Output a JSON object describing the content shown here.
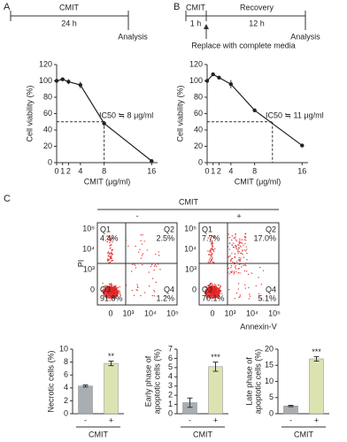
{
  "panels": {
    "A": {
      "label": "A",
      "timeline": {
        "treatment": "CMIT",
        "duration": "24 h",
        "end": "Analysis"
      }
    },
    "B": {
      "label": "B",
      "timeline": {
        "treatment": "CMIT",
        "duration": "1 h",
        "recovery": "Recovery",
        "recovery_duration": "12 h",
        "end": "Analysis",
        "note": "Replace with complete media"
      }
    },
    "C": {
      "label": "C",
      "title": "CMIT",
      "x_label": "Annexin-V",
      "y_label": "PI",
      "x_ticks": [
        "0",
        "10³",
        "10⁴",
        "10⁵"
      ],
      "y_ticks": [
        "10⁵",
        "10⁴",
        "10³",
        "0"
      ],
      "plots": [
        {
          "condition": "-",
          "quadrants": [
            {
              "name": "Q1",
              "value": "4.4%"
            },
            {
              "name": "Q2",
              "value": "2.5%"
            },
            {
              "name": "Q3",
              "value": "91.8%"
            },
            {
              "name": "Q4",
              "value": "1.2%"
            }
          ]
        },
        {
          "condition": "+",
          "quadrants": [
            {
              "name": "Q1",
              "value": "7.7%"
            },
            {
              "name": "Q2",
              "value": "17.0%"
            },
            {
              "name": "Q3",
              "value": "70.1%"
            },
            {
              "name": "Q4",
              "value": "5.1%"
            }
          ]
        }
      ]
    }
  },
  "chart_data": [
    {
      "type": "line",
      "x_label": "CMIT (μg/ml)",
      "y_label": "Cell viability (%)",
      "x": [
        0,
        1,
        2,
        4,
        8,
        16
      ],
      "values": [
        100,
        102,
        99,
        95,
        48,
        2
      ],
      "errors": [
        1,
        1,
        3,
        4,
        3,
        1
      ],
      "color": "#222222",
      "xlim": [
        0,
        17
      ],
      "ylim": [
        0,
        120
      ],
      "xticks": [
        0,
        1,
        2,
        4,
        8,
        16
      ],
      "yticks": [
        0,
        20,
        40,
        60,
        80,
        100,
        120
      ],
      "reference": {
        "x": 8,
        "y": 50
      },
      "annotation": "IC50 ≒ 8 μg/ml"
    },
    {
      "type": "line",
      "x_label": "CMIT (μg/ml)",
      "y_label": "Cell viability (%)",
      "x": [
        0,
        1,
        2,
        4,
        8,
        16
      ],
      "values": [
        100,
        108,
        104,
        96,
        64,
        21
      ],
      "errors": [
        1,
        2,
        2,
        5,
        1,
        1
      ],
      "color": "#222222",
      "xlim": [
        0,
        17
      ],
      "ylim": [
        0,
        120
      ],
      "xticks": [
        0,
        1,
        2,
        4,
        8,
        16
      ],
      "yticks": [
        0,
        20,
        40,
        60,
        80,
        100,
        120
      ],
      "reference": {
        "x": 11,
        "y": 50
      },
      "annotation": "IC50 ≒ 11 μg/ml"
    },
    {
      "type": "bar",
      "y_label": "Necrotic cells (%)",
      "x_label": "CMIT",
      "categories": [
        "-",
        "+"
      ],
      "values": [
        4.3,
        7.8
      ],
      "errors": [
        0.15,
        0.35
      ],
      "colors": [
        "#a8aeb2",
        "#dde3b0"
      ],
      "significance": "**",
      "ylim": [
        0,
        10
      ],
      "yticks": [
        0,
        2,
        4,
        6,
        8,
        10
      ]
    },
    {
      "type": "bar",
      "y_label": [
        "Early phase of",
        "apoptotic cells (%)"
      ],
      "x_label": "CMIT",
      "categories": [
        "-",
        "+"
      ],
      "values": [
        1.2,
        5.1
      ],
      "errors": [
        0.5,
        0.5
      ],
      "colors": [
        "#a8aeb2",
        "#dde3b0"
      ],
      "significance": "***",
      "ylim": [
        0,
        7
      ],
      "yticks": [
        0,
        1,
        2,
        3,
        4,
        5,
        6,
        7
      ]
    },
    {
      "type": "bar",
      "y_label": [
        "Late phase of",
        "apoptotic cells (%)"
      ],
      "x_label": "CMIT",
      "categories": [
        "-",
        "+"
      ],
      "values": [
        2.4,
        17.0
      ],
      "errors": [
        0.2,
        0.7
      ],
      "colors": [
        "#a8aeb2",
        "#dde3b0"
      ],
      "significance": "***",
      "ylim": [
        0,
        20
      ],
      "yticks": [
        0,
        5,
        10,
        15,
        20
      ]
    }
  ]
}
